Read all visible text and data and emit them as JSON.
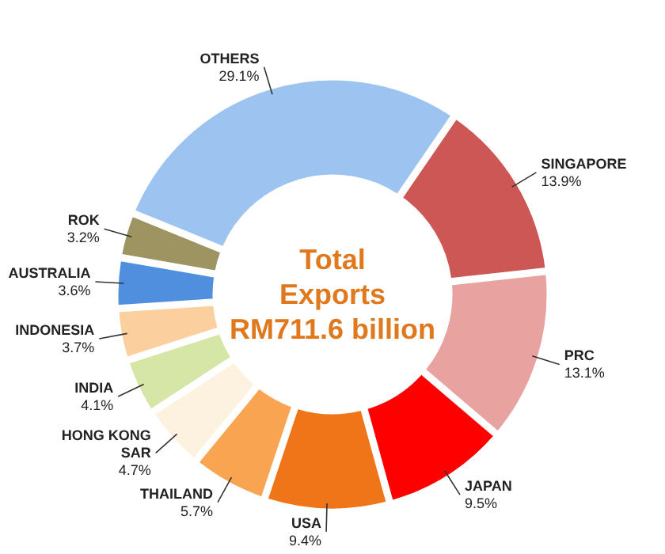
{
  "chart_data": {
    "type": "donut",
    "title": "Total\nExports\nRM711.6 billion",
    "categories": [
      "SINGAPORE",
      "PRC",
      "JAPAN",
      "USA",
      "THAILAND",
      "HONG KONG SAR",
      "INDIA",
      "INDONESIA",
      "AUSTRALIA",
      "ROK",
      "OTHERS"
    ],
    "values": [
      13.9,
      13.1,
      9.5,
      9.4,
      5.7,
      4.7,
      4.1,
      3.7,
      3.6,
      3.2,
      29.1
    ],
    "value_labels": [
      "13.9%",
      "13.1%",
      "9.5%",
      "9.4%",
      "5.7%",
      "4.7%",
      "4.1%",
      "3.7%",
      "3.6%",
      "3.2%",
      "29.1%"
    ],
    "colors": [
      "#cd5755",
      "#e8a3a1",
      "#ff0000",
      "#f07418",
      "#f9a450",
      "#fdf2e0",
      "#d5e6a6",
      "#fbcf9e",
      "#4f8fde",
      "#9e9462",
      "#9dc3f0"
    ]
  }
}
